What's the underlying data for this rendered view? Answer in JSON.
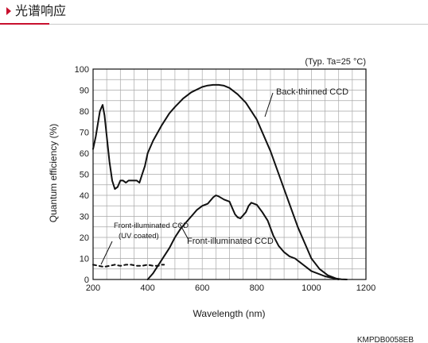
{
  "header": {
    "title": "光谱响应",
    "accent_color": "#c8102e"
  },
  "chart_data": {
    "type": "line",
    "title": "",
    "note": "(Typ. Ta=25 °C)",
    "xlabel": "Wavelength (nm)",
    "ylabel": "Quantum efficiency (%)",
    "xlim": [
      200,
      1200
    ],
    "ylim": [
      0,
      100
    ],
    "x_ticks": [
      200,
      400,
      600,
      800,
      1000,
      1200
    ],
    "y_ticks": [
      0,
      10,
      20,
      30,
      40,
      50,
      60,
      70,
      80,
      90,
      100
    ],
    "grid": true,
    "series": [
      {
        "name": "Back-thinned CCD",
        "style": "solid",
        "color": "#111111",
        "x": [
          200,
          210,
          225,
          235,
          242,
          250,
          260,
          270,
          280,
          290,
          300,
          310,
          320,
          330,
          340,
          350,
          360,
          370,
          380,
          390,
          400,
          420,
          450,
          480,
          500,
          530,
          560,
          600,
          620,
          640,
          660,
          680,
          700,
          730,
          760,
          800,
          850,
          900,
          950,
          1000,
          1030,
          1060,
          1090,
          1110,
          1130
        ],
        "values": [
          62,
          68,
          80,
          83,
          78,
          68,
          56,
          47,
          43,
          44,
          47,
          47,
          46,
          47,
          47,
          47,
          47,
          46,
          50,
          54,
          60,
          66,
          73,
          79,
          82,
          86,
          89,
          91.5,
          92.2,
          92.5,
          92.5,
          92.1,
          91,
          88,
          84,
          76,
          61,
          43,
          25,
          10,
          5,
          2,
          0.5,
          0.1,
          0
        ]
      },
      {
        "name": "Front-illuminated CCD",
        "style": "solid",
        "color": "#111111",
        "x": [
          400,
          420,
          450,
          480,
          500,
          520,
          540,
          560,
          580,
          600,
          620,
          640,
          650,
          660,
          680,
          700,
          710,
          720,
          730,
          740,
          750,
          760,
          770,
          780,
          800,
          820,
          840,
          860,
          880,
          900,
          920,
          940,
          960,
          980,
          1000,
          1050,
          1100
        ],
        "values": [
          0,
          3,
          9,
          15,
          20,
          24,
          27,
          30,
          33,
          35,
          36,
          39,
          40,
          39.5,
          38,
          37,
          34,
          31,
          29.5,
          29,
          30.5,
          32,
          35,
          36.5,
          35.5,
          32,
          28,
          21,
          16,
          13,
          11,
          10,
          8,
          6,
          4,
          1.5,
          0
        ]
      },
      {
        "name": "Front-illuminated CCD (UV coated)",
        "style": "dashed",
        "color": "#111111",
        "x": [
          200,
          220,
          240,
          260,
          280,
          300,
          320,
          340,
          360,
          380,
          400,
          420,
          440,
          450,
          460
        ],
        "values": [
          7,
          6.5,
          6,
          6.5,
          7,
          6.5,
          7,
          7,
          6.5,
          6.5,
          7,
          6.5,
          6.5,
          7,
          7
        ]
      }
    ],
    "annotations": {
      "back_thinned": "Back-thinned CCD",
      "front_illuminated": "Front-illuminated CCD",
      "uv_coated_line1": "Front-illuminated CCD",
      "uv_coated_line2": "(UV coated)"
    },
    "figure_code": "KMPDB0058EB"
  }
}
